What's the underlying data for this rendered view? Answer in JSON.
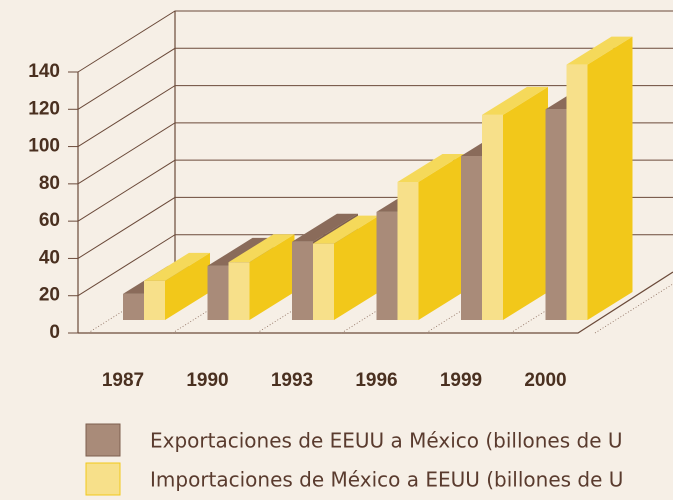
{
  "chart_data": {
    "type": "bar3d",
    "categories": [
      "1987",
      "1990",
      "1993",
      "1996",
      "1999",
      "2000"
    ],
    "series": [
      {
        "name": "Exportaciones de EEUU a México (billones de U",
        "color": "#a98b79",
        "values": [
          14,
          29,
          42,
          58,
          88,
          113
        ]
      },
      {
        "name": "Importaciones de México a EEUU (billones de U",
        "color": "#f7e08a",
        "values": [
          21,
          31,
          41,
          74,
          110,
          137
        ]
      }
    ],
    "ylim": [
      0,
      140
    ],
    "yticks": [
      0,
      20,
      40,
      60,
      80,
      100,
      120,
      140
    ],
    "grid": true
  }
}
